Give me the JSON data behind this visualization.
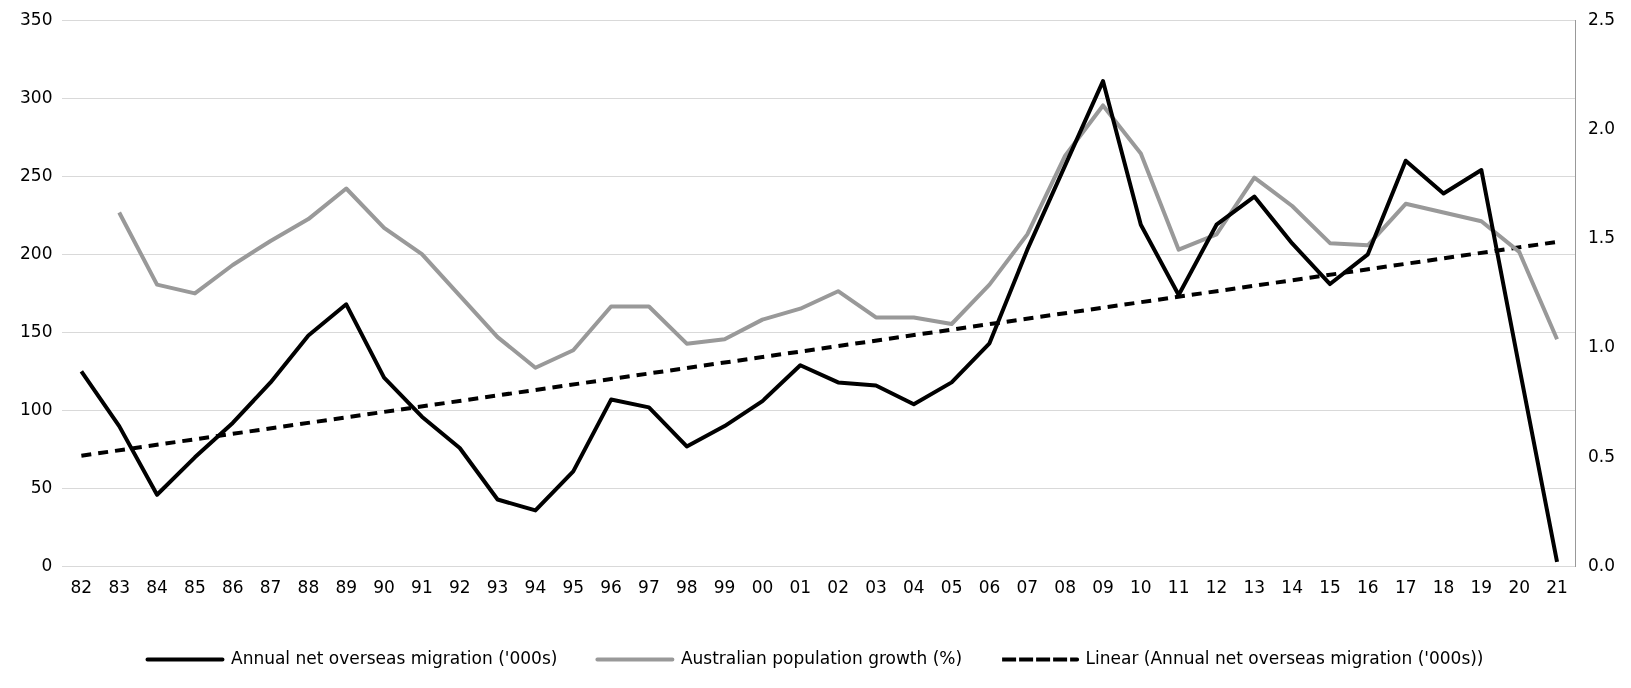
{
  "chart_data": {
    "type": "line",
    "categories": [
      "82",
      "83",
      "84",
      "85",
      "86",
      "87",
      "88",
      "89",
      "90",
      "91",
      "92",
      "93",
      "94",
      "95",
      "96",
      "97",
      "98",
      "99",
      "00",
      "01",
      "02",
      "03",
      "04",
      "05",
      "06",
      "07",
      "08",
      "09",
      "10",
      "11",
      "12",
      "13",
      "14",
      "15",
      "16",
      "17",
      "18",
      "19",
      "20",
      "21"
    ],
    "series": [
      {
        "name": "Annual net overseas migration ('000s)",
        "color": "#000000",
        "values": [
          125,
          90,
          46,
          70,
          92,
          118,
          148,
          168,
          121,
          96,
          76,
          43,
          36,
          61,
          107,
          102,
          77,
          90,
          106,
          129,
          118,
          116,
          104,
          118,
          143,
          203,
          257,
          311,
          219,
          174,
          219,
          237,
          207,
          181,
          200,
          260,
          239,
          254,
          128,
          3
        ]
      },
      {
        "name": "Australian population growth (%)",
        "color": "#999999",
        "axis": "y2",
        "values": [
          null,
          1.62,
          1.29,
          1.25,
          1.38,
          1.49,
          1.59,
          1.73,
          1.55,
          1.43,
          1.24,
          1.05,
          0.91,
          0.99,
          1.19,
          1.19,
          1.02,
          1.04,
          1.13,
          1.18,
          1.26,
          1.14,
          1.14,
          1.11,
          1.29,
          1.52,
          1.88,
          2.11,
          1.89,
          1.45,
          1.52,
          1.78,
          1.65,
          1.48,
          1.47,
          1.66,
          1.62,
          1.58,
          1.44,
          1.04
        ]
      },
      {
        "name": "Linear (Annual net overseas migration ('000s))",
        "color": "#000000",
        "line_style": "dashed",
        "x": [
          "82",
          "21"
        ],
        "values": [
          71,
          208
        ]
      }
    ],
    "ylim": [
      0,
      350
    ],
    "yticks": [
      0,
      50,
      100,
      150,
      200,
      250,
      300,
      350
    ],
    "y2lim": [
      0,
      2.5
    ],
    "y2ticks": [
      {
        "value": 0,
        "label": "0.0"
      },
      {
        "value": 0.5,
        "label": "0.5"
      },
      {
        "value": 1,
        "label": "1.0"
      },
      {
        "value": 1.5,
        "label": "1.5"
      },
      {
        "value": 2,
        "label": "2.0"
      },
      {
        "value": 2.5,
        "label": "2.5"
      }
    ],
    "grid": "y",
    "legend": "bottom",
    "marker": "none",
    "line_style": "solid"
  }
}
